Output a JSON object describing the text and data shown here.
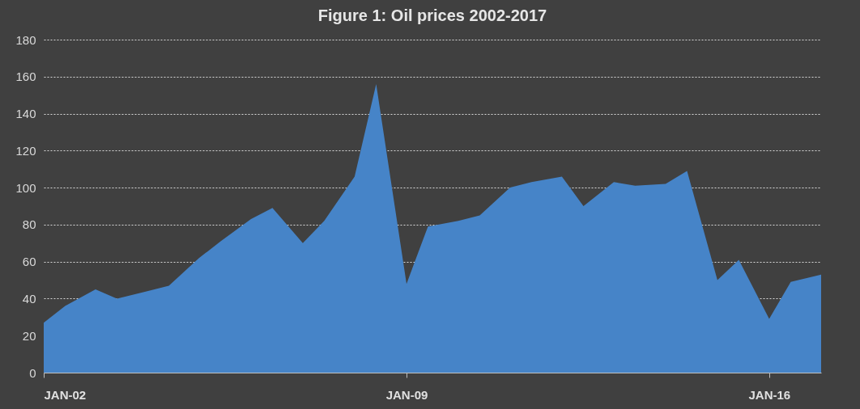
{
  "chart_data": {
    "type": "area",
    "title": "Figure 1: Oil prices 2002-2017",
    "x": [
      "2002-01",
      "2002-06",
      "2003-01",
      "2003-06",
      "2004-01",
      "2004-06",
      "2005-01",
      "2005-06",
      "2006-01",
      "2006-06",
      "2007-01",
      "2007-06",
      "2008-01",
      "2008-06",
      "2009-01",
      "2009-06",
      "2010-01",
      "2010-06",
      "2011-01",
      "2011-06",
      "2012-01",
      "2012-06",
      "2013-01",
      "2013-06",
      "2014-01",
      "2014-06",
      "2015-01",
      "2015-06",
      "2016-01",
      "2016-06",
      "2017-01"
    ],
    "series": [
      {
        "color": "#4684c8",
        "values": [
          27,
          36,
          45,
          40,
          44,
          47,
          62,
          71,
          83,
          89,
          70,
          82,
          106,
          156,
          48,
          79,
          82,
          85,
          100,
          103,
          106,
          90,
          103,
          101,
          102,
          109,
          50,
          61,
          29,
          49,
          53
        ]
      }
    ],
    "xlim": [
      "2002-01",
      "2017-01"
    ],
    "xticks": [
      {
        "value": "2002-01",
        "label": "JAN-02"
      },
      {
        "value": "2009-01",
        "label": "JAN-09"
      },
      {
        "value": "2016-01",
        "label": "JAN-16"
      }
    ],
    "ylim": [
      0,
      180
    ],
    "yticks": [
      0,
      20,
      40,
      60,
      80,
      100,
      120,
      140,
      160,
      180
    ],
    "grid": "y"
  }
}
